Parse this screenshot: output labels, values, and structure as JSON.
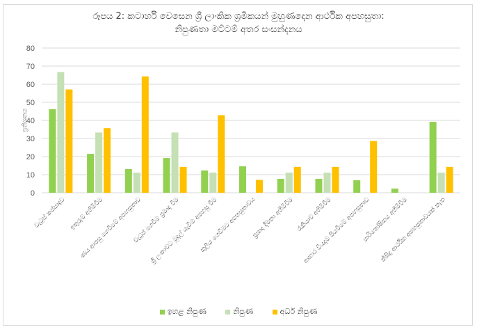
{
  "chart_data": {
    "type": "bar",
    "title": "රූපය 2: කටාර්හි වෙසෙන ශ්‍රී ලාංකික ශ්‍රමිකයන් මුහුණදෙන ආර්ථික අපහසුතා:",
    "subtitle": "නිපුණතා මට්ටම් අතර සංසන්දනය",
    "xlabel": "",
    "ylabel": "ප්‍රතිශතය",
    "ylim": [
      0,
      80
    ],
    "yticks": [
      0,
      10,
      20,
      30,
      40,
      50,
      60,
      70,
      80
    ],
    "grid": true,
    "legend_position": "bottom",
    "categories": [
      "වැටුප් කප්පාදුව",
      "ඉතුරුම් අහිමිවීම",
      "ණය ආපසු ගෙවීමේ අපහසුතාව",
      "වැටුප් ගෙවීම ප්‍රමාද වීම",
      "ශ්‍රී ලංකාවට මුදල් යැවීම අපහසු වීම",
      "කුලිය ගෙවීමට අපහසුතාවය",
      "ප්‍රසාද දීමනා අහිමිවීම",
      "රැකියාව අහිමිවීම",
      "ආහාර වියදම් පියවීමේ අපහසුතාව",
      "පාරිතෝෂිකය අහිමිවීම",
      "කිසිදු ආර්ථික අපහසුතාවයක් නැත"
    ],
    "series": [
      {
        "name": "ඉහළ නිපුණ",
        "color": "#92d050",
        "values": [
          46.2,
          21.5,
          13.1,
          19.2,
          12.3,
          14.6,
          7.7,
          7.7,
          6.9,
          2.3,
          39.2
        ]
      },
      {
        "name": "නිපුණ",
        "color": "#c5e0b4",
        "values": [
          66.7,
          33.3,
          11.1,
          33.3,
          11.1,
          0,
          11.1,
          11.1,
          0,
          0,
          11.1
        ]
      },
      {
        "name": "අර්ධ නිපුණ",
        "color": "#ffc000",
        "values": [
          57.1,
          35.7,
          64.3,
          14.3,
          42.9,
          7.1,
          14.3,
          14.3,
          28.6,
          0,
          14.3
        ]
      }
    ]
  }
}
